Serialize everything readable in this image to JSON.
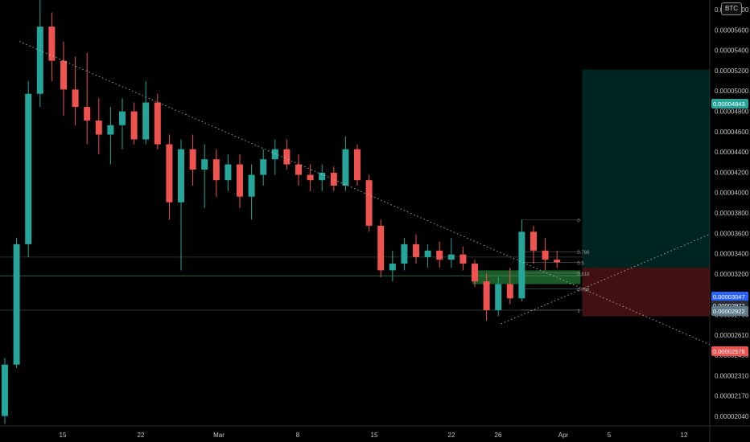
{
  "symbol_badge": "BTC",
  "chart_data": {
    "type": "candlestick",
    "title": "",
    "xlabel": "",
    "ylabel": "",
    "ylim": [
      1.95e-05,
      5.78e-05
    ],
    "scale": "log",
    "grid": false,
    "background": "#000000",
    "colors": {
      "up": "#26a69a",
      "down": "#ef5350",
      "trendline": "#c8c8c8",
      "support_zone": "#1f6b2e",
      "target_zone": "#00695c",
      "stop_zone": "#6d1c1c",
      "axis_text": "#c8c8c8"
    },
    "x_tick_labels": [
      "15",
      "22",
      "Mar",
      "8",
      "15",
      "22",
      "26",
      "Apr",
      "5",
      "12"
    ],
    "y_tick_labels": [
      "0.00005800",
      "0.00005600",
      "0.00005400",
      "0.00005200",
      "0.00005000",
      "0.00004800",
      "0.00004600",
      "0.00004400",
      "0.00004200",
      "0.00004000",
      "0.00003800",
      "0.00003600",
      "0.00003400",
      "0.00003200",
      "0.00003000",
      "0.00002750",
      "0.00002610",
      "0.00002450",
      "0.00002310",
      "0.00002170",
      "0.00002040"
    ],
    "price_badges": [
      {
        "label": "0.00004843",
        "color": "#26a69a"
      },
      {
        "label": "0.00003047",
        "color": "#2962ff"
      },
      {
        "label": "0.00002972",
        "color": "#2a2e39"
      },
      {
        "label": "0.00002922",
        "color": "#607d8b"
      },
      {
        "label": "0.00002576",
        "color": "#ef5350"
      }
    ],
    "fib_labels": [
      "0",
      "0.786",
      "0.5",
      "0.618",
      "0.786",
      "1"
    ],
    "candle_series": {
      "name": "",
      "ohlc": [
        [
          2e-05,
          2.32e-05,
          1.96e-05,
          2.28e-05
        ],
        [
          2.28e-05,
          3.15e-05,
          2.26e-05,
          3.1e-05
        ],
        [
          3.1e-05,
          4.7e-05,
          3e-05,
          4.55e-05
        ],
        [
          4.55e-05,
          5.78e-05,
          4.4e-05,
          5.4e-05
        ],
        [
          5.4e-05,
          5.6e-05,
          4.7e-05,
          4.95e-05
        ],
        [
          4.95e-05,
          5.2e-05,
          4.3e-05,
          4.6e-05
        ],
        [
          4.6e-05,
          5e-05,
          4.2e-05,
          4.4e-05
        ],
        [
          4.4e-05,
          5.05e-05,
          4e-05,
          4.25e-05
        ],
        [
          4.25e-05,
          4.5e-05,
          3.9e-05,
          4.1e-05
        ],
        [
          4.1e-05,
          4.4e-05,
          3.8e-05,
          4.2e-05
        ],
        [
          4.2e-05,
          4.5e-05,
          3.95e-05,
          4.35e-05
        ],
        [
          4.35e-05,
          4.45e-05,
          4e-05,
          4.05e-05
        ],
        [
          4.05e-05,
          4.7e-05,
          4e-05,
          4.45e-05
        ],
        [
          4.45e-05,
          4.55e-05,
          3.95e-05,
          4e-05
        ],
        [
          4e-05,
          4.1e-05,
          3.3e-05,
          3.45e-05
        ],
        [
          3.45e-05,
          4.05e-05,
          2.9e-05,
          3.95e-05
        ],
        [
          3.95e-05,
          4.1e-05,
          3.6e-05,
          3.75e-05
        ],
        [
          3.75e-05,
          4e-05,
          3.4e-05,
          3.85e-05
        ],
        [
          3.85e-05,
          3.95e-05,
          3.5e-05,
          3.65e-05
        ],
        [
          3.65e-05,
          3.9e-05,
          3.55e-05,
          3.8e-05
        ],
        [
          3.8e-05,
          3.9e-05,
          3.4e-05,
          3.5e-05
        ],
        [
          3.5e-05,
          3.8e-05,
          3.3e-05,
          3.7e-05
        ],
        [
          3.7e-05,
          3.95e-05,
          3.6e-05,
          3.85e-05
        ],
        [
          3.85e-05,
          4.05e-05,
          3.7e-05,
          3.95e-05
        ],
        [
          3.95e-05,
          4.05e-05,
          3.75e-05,
          3.8e-05
        ],
        [
          3.8e-05,
          3.9e-05,
          3.6e-05,
          3.7e-05
        ],
        [
          3.7e-05,
          3.8e-05,
          3.55e-05,
          3.65e-05
        ],
        [
          3.65e-05,
          3.8e-05,
          3.55e-05,
          3.72e-05
        ],
        [
          3.72e-05,
          3.78e-05,
          3.55e-05,
          3.6e-05
        ],
        [
          3.6e-05,
          4.08e-05,
          3.55e-05,
          3.95e-05
        ],
        [
          3.95e-05,
          4e-05,
          3.6e-05,
          3.65e-05
        ],
        [
          3.65e-05,
          3.7e-05,
          3.2e-05,
          3.25e-05
        ],
        [
          3.25e-05,
          3.3e-05,
          2.85e-05,
          2.9e-05
        ],
        [
          2.9e-05,
          3.05e-05,
          2.82e-05,
          2.95e-05
        ],
        [
          2.95e-05,
          3.15e-05,
          2.9e-05,
          3.1e-05
        ],
        [
          3.1e-05,
          3.18e-05,
          2.95e-05,
          3e-05
        ],
        [
          3e-05,
          3.1e-05,
          2.92e-05,
          3.05e-05
        ],
        [
          3.05e-05,
          3.12e-05,
          2.92e-05,
          2.98e-05
        ],
        [
          2.98e-05,
          3.15e-05,
          2.92e-05,
          3.02e-05
        ],
        [
          3.02e-05,
          3.08e-05,
          2.9e-05,
          2.95e-05
        ],
        [
          2.95e-05,
          2.98e-05,
          2.78e-05,
          2.82e-05
        ],
        [
          2.82e-05,
          2.88e-05,
          2.55e-05,
          2.62e-05
        ],
        [
          2.62e-05,
          2.85e-05,
          2.58e-05,
          2.8e-05
        ],
        [
          2.8e-05,
          2.92e-05,
          2.66e-05,
          2.7e-05
        ],
        [
          2.7e-05,
          3.3e-05,
          2.68e-05,
          3.2e-05
        ],
        [
          3.2e-05,
          3.25e-05,
          2.95e-05,
          3.05e-05
        ],
        [
          3.05e-05,
          3.15e-05,
          2.9e-05,
          2.98e-05
        ],
        [
          2.98e-05,
          3.05e-05,
          2.92e-05,
          2.96e-05
        ]
      ]
    },
    "trendlines": [
      {
        "name": "descending-resistance",
        "points": [
          [
            0,
            5.2e-05
          ],
          [
            52,
            2.4e-05
          ]
        ]
      },
      {
        "name": "ascending-support",
        "points": [
          [
            41,
            2.53e-05
          ],
          [
            52,
            3.18e-05
          ]
        ]
      }
    ],
    "zones": [
      {
        "name": "support-zone",
        "from": 2.8e-05,
        "to": 2.9e-05
      },
      {
        "name": "target-zone",
        "from": 2.92e-05,
        "to": 4.84e-05
      },
      {
        "name": "stop-zone",
        "from": 2.58e-05,
        "to": 2.92e-05
      }
    ],
    "fib_retracement": {
      "high": 3.3e-05,
      "low": 2.62e-05
    }
  }
}
